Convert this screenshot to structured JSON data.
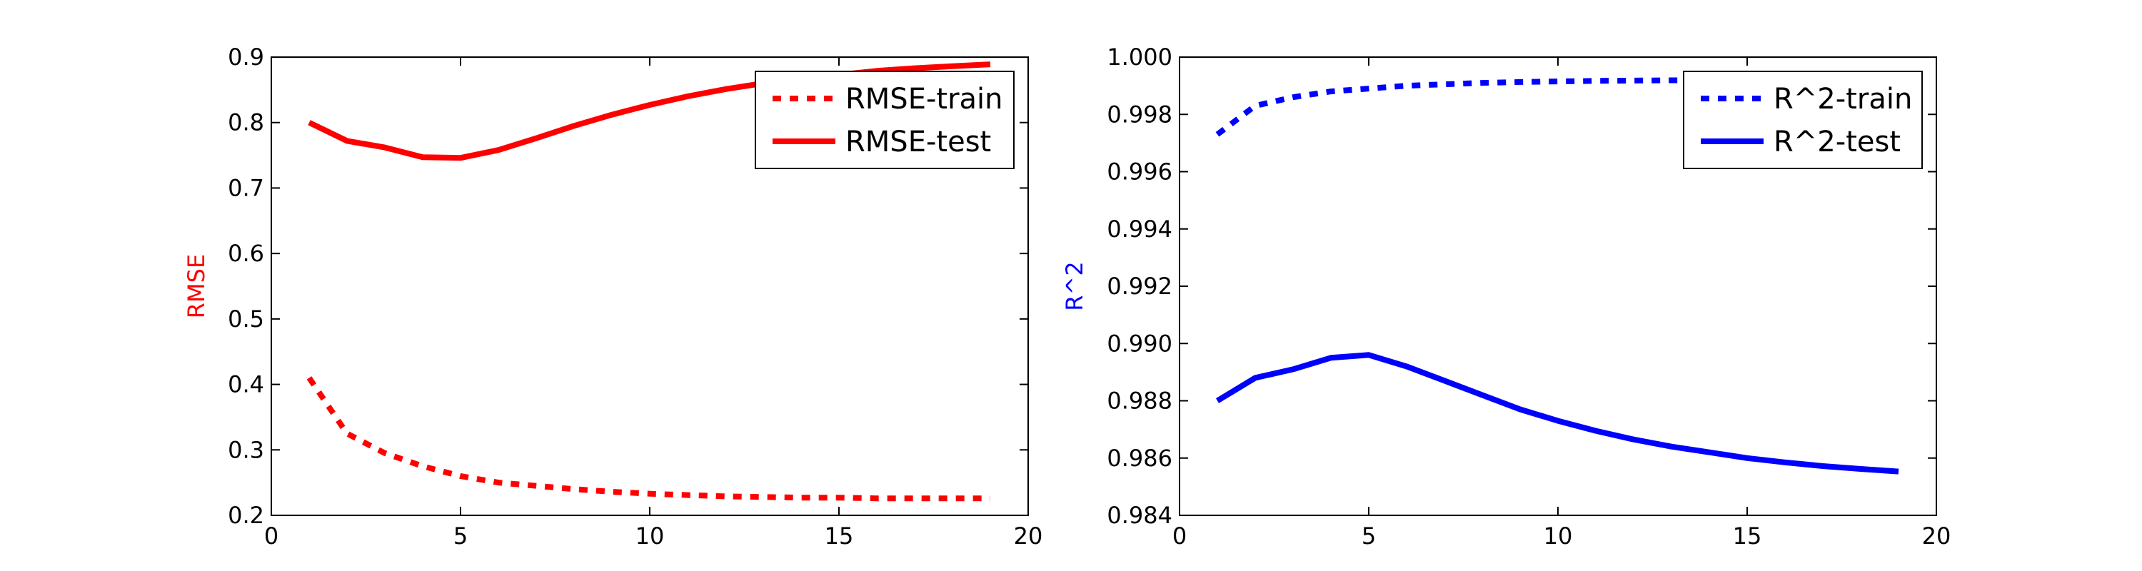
{
  "chart_data": [
    {
      "type": "line",
      "title": "",
      "xlabel": "",
      "ylabel": "RMSE",
      "ylabel_color": "#ff0000",
      "xlim": [
        0,
        20
      ],
      "ylim": [
        0.2,
        0.9
      ],
      "xticks": [
        0,
        5,
        10,
        15,
        20
      ],
      "yticks": [
        0.2,
        0.3,
        0.4,
        0.5,
        0.6,
        0.7,
        0.8,
        0.9
      ],
      "ytick_decimals": 1,
      "grid": false,
      "legend_position": "top-right",
      "x": [
        1,
        2,
        3,
        4,
        5,
        6,
        7,
        8,
        9,
        10,
        11,
        12,
        13,
        14,
        15,
        16,
        17,
        18,
        19
      ],
      "series": [
        {
          "name": "RMSE-train",
          "color": "#ff0000",
          "style": "dashed",
          "values": [
            0.41,
            0.325,
            0.295,
            0.275,
            0.26,
            0.25,
            0.245,
            0.24,
            0.236,
            0.233,
            0.231,
            0.229,
            0.228,
            0.227,
            0.227,
            0.226,
            0.226,
            0.226,
            0.226
          ]
        },
        {
          "name": "RMSE-test",
          "color": "#ff0000",
          "style": "solid",
          "values": [
            0.8,
            0.772,
            0.762,
            0.747,
            0.746,
            0.758,
            0.776,
            0.795,
            0.812,
            0.827,
            0.84,
            0.851,
            0.86,
            0.867,
            0.873,
            0.879,
            0.883,
            0.886,
            0.889
          ]
        }
      ]
    },
    {
      "type": "line",
      "title": "",
      "xlabel": "",
      "ylabel": "R^2",
      "ylabel_color": "#0000ff",
      "xlim": [
        0,
        20
      ],
      "ylim": [
        0.984,
        1.0
      ],
      "xticks": [
        0,
        5,
        10,
        15,
        20
      ],
      "yticks": [
        0.984,
        0.986,
        0.988,
        0.99,
        0.992,
        0.994,
        0.996,
        0.998,
        1.0
      ],
      "ytick_decimals": 3,
      "grid": false,
      "legend_position": "top-right",
      "x": [
        1,
        2,
        3,
        4,
        5,
        6,
        7,
        8,
        9,
        10,
        11,
        12,
        13,
        14,
        15,
        16,
        17,
        18,
        19
      ],
      "series": [
        {
          "name": "R^2-train",
          "color": "#0000ff",
          "style": "dashed",
          "values": [
            0.9973,
            0.9983,
            0.9986,
            0.9988,
            0.9989,
            0.999,
            0.99905,
            0.9991,
            0.99913,
            0.99915,
            0.99917,
            0.99918,
            0.99919,
            0.9992,
            0.9992,
            0.9992,
            0.9992,
            0.9992,
            0.9992
          ]
        },
        {
          "name": "R^2-test",
          "color": "#0000ff",
          "style": "solid",
          "values": [
            0.988,
            0.9888,
            0.9891,
            0.9895,
            0.9896,
            0.9892,
            0.9887,
            0.9882,
            0.9877,
            0.9873,
            0.98695,
            0.98665,
            0.9864,
            0.9862,
            0.986,
            0.98585,
            0.98572,
            0.98562,
            0.98553
          ]
        }
      ]
    }
  ]
}
